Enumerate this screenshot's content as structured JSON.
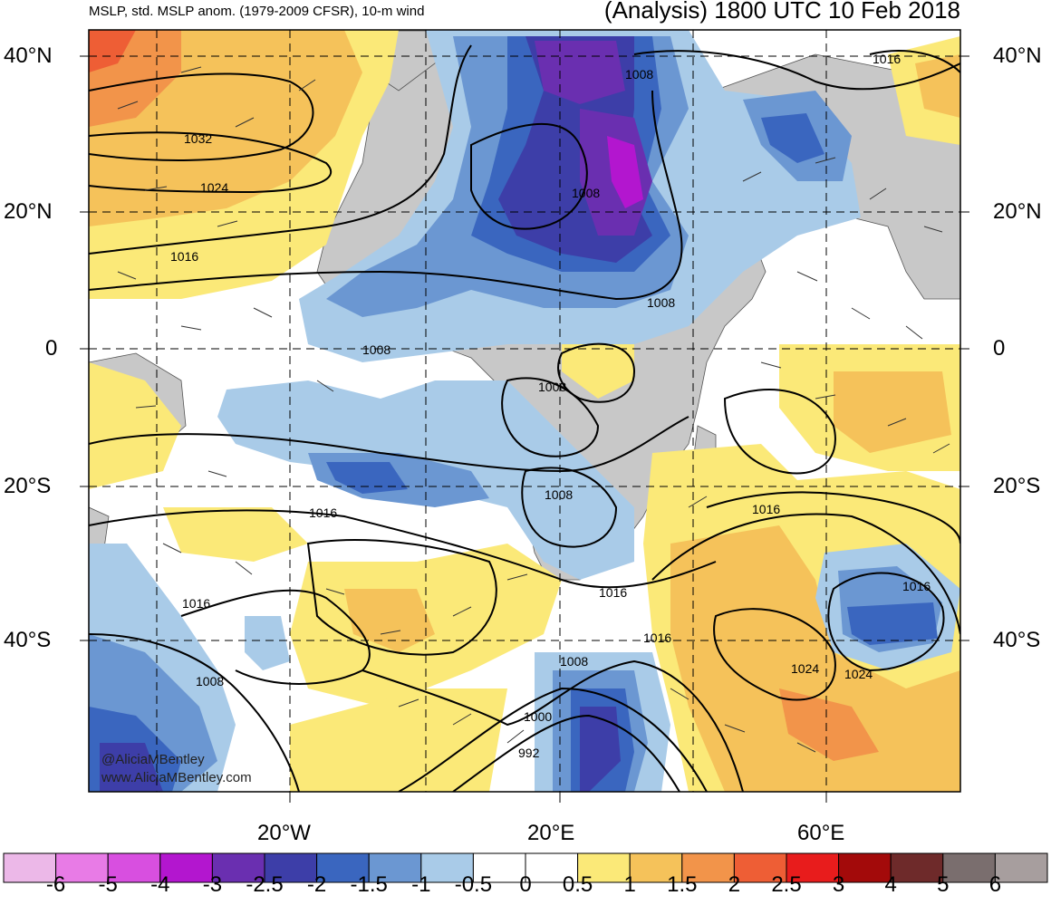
{
  "header": {
    "left_title": "MSLP, std. MSLP anom. (1979-2009 CFSR), 10-m wind",
    "right_title": "(Analysis) 1800 UTC 10 Feb 2018"
  },
  "axes": {
    "lat_labels": [
      "40°N",
      "20°N",
      "0",
      "20°S",
      "40°S"
    ],
    "lon_labels": [
      "20°W",
      "20°E",
      "60°E"
    ]
  },
  "contour_labels": [
    "1032",
    "1024",
    "1016",
    "1008",
    "1008",
    "1008",
    "1008",
    "1008",
    "1008",
    "1016",
    "1016",
    "1016",
    "1016",
    "1016",
    "1016",
    "1024",
    "1024",
    "1016",
    "1008",
    "1008",
    "1000",
    "992"
  ],
  "watermark": {
    "line1": "@AliciaMBentley",
    "line2": "www.AliciaMBentley.com"
  },
  "colorbar": {
    "labels": [
      "-6",
      "-5",
      "-4",
      "-3",
      "-2.5",
      "-2",
      "-1.5",
      "-1",
      "-0.5",
      "0",
      "0.5",
      "1",
      "1.5",
      "2",
      "2.5",
      "3",
      "4",
      "5",
      "6"
    ],
    "colors": [
      "#ecb8e8",
      "#e87be6",
      "#d84fe0",
      "#b316cf",
      "#6a2fb0",
      "#3d3ea8",
      "#3a66bf",
      "#6b97d2",
      "#a9cbe8",
      "#ffffff",
      "#ffffff",
      "#fbe978",
      "#f5c25a",
      "#f2944a",
      "#ee5e35",
      "#e81c1c",
      "#a30a0a",
      "#6e2a2a",
      "#7a6e6e",
      "#a79e9e"
    ]
  }
}
